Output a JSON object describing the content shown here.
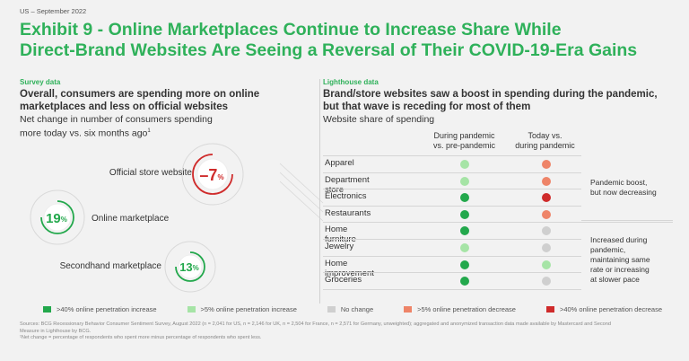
{
  "kicker": "US – September 2022",
  "title_line1": "Exhibit 9 - Online Marketplaces Continue to Increase Share While",
  "title_line2": "Direct-Brand Websites Are Seeing a Reversal of Their COVID-19-Era Gains",
  "colors": {
    "large_increase": "#23a84c",
    "small_increase": "#a6e4a6",
    "no_change": "#cfcfcf",
    "small_decrease": "#ee8468",
    "large_decrease": "#cf2b2b",
    "accent": "#2fb15a"
  },
  "survey": {
    "label": "Survey data",
    "heading_line1": "Overall, consumers are spending more on online",
    "heading_line2": "marketplaces and less on official websites",
    "sub_line1": "Net change in number of consumers spending",
    "sub_line2": "more today vs. six months ago",
    "footnote_mark": "1"
  },
  "lighthouse": {
    "label": "Lighthouse data",
    "heading_line1": "Brand/store websites saw a boost in spending during the pandemic,",
    "heading_line2": "but that wave is receding for most of them",
    "sub": "Website share of spending",
    "col1_line1": "During pandemic",
    "col1_line2": "vs. pre-pandemic",
    "col2_line1": "Today vs.",
    "col2_line2": "during pandemic",
    "note1_line1": "Pandemic boost,",
    "note1_line2": "but now decreasing",
    "note2_line1": "Increased during",
    "note2_line2": "pandemic,",
    "note2_line3": "maintaining same",
    "note2_line4": "rate or increasing",
    "note2_line5": "at slower pace"
  },
  "chart_data": [
    {
      "type": "bubble",
      "title": "Net change in number of consumers spending more today vs. six months ago",
      "series": [
        {
          "name": "Official store website",
          "value": -7,
          "display": "–7",
          "unit": "%",
          "color": "#cf2b2b"
        },
        {
          "name": "Online marketplace",
          "value": 19,
          "display": "19",
          "unit": "%",
          "color": "#23a84c"
        },
        {
          "name": "Secondhand marketplace",
          "value": 13,
          "display": "13",
          "unit": "%",
          "color": "#23a84c"
        }
      ]
    },
    {
      "type": "table",
      "title": "Website share of spending",
      "columns": [
        "During pandemic vs. pre-pandemic",
        "Today vs. during pandemic"
      ],
      "rows": [
        {
          "category": "Apparel",
          "during": "small_increase",
          "today": "small_decrease"
        },
        {
          "category": "Department store",
          "during": "small_increase",
          "today": "small_decrease"
        },
        {
          "category": "Electronics",
          "during": "large_increase",
          "today": "large_decrease"
        },
        {
          "category": "Restaurants",
          "during": "large_increase",
          "today": "small_decrease"
        },
        {
          "category": "Home furniture",
          "during": "large_increase",
          "today": "no_change"
        },
        {
          "category": "Jewelry",
          "during": "small_increase",
          "today": "no_change"
        },
        {
          "category": "Home improvement",
          "during": "large_increase",
          "today": "small_increase"
        },
        {
          "category": "Groceries",
          "during": "large_increase",
          "today": "no_change"
        }
      ]
    }
  ],
  "legend": [
    {
      "key": "large_increase",
      "label": ">40% online penetration increase"
    },
    {
      "key": "small_increase",
      "label": ">5% online penetration increase"
    },
    {
      "key": "no_change",
      "label": "No change"
    },
    {
      "key": "small_decrease",
      "label": ">5% online penetration decrease"
    },
    {
      "key": "large_decrease",
      "label": ">40% online penetration decrease"
    }
  ],
  "footer_line1": "Sources: BCG Recessionary Behavior Consumer Sentiment Survey, August 2022 (n = 2,041 for US, n = 2,146 for UK, n = 2,504 for France, n = 2,571 for Germany, unweighted); aggregated and anonymized transaction data made available by Mastercard and Second",
  "footer_line2": "Measure in Lighthouse by BCG.",
  "footer_line3": "¹Net change = percentage of respondents who spent more minus percentage of respondents who spent less."
}
